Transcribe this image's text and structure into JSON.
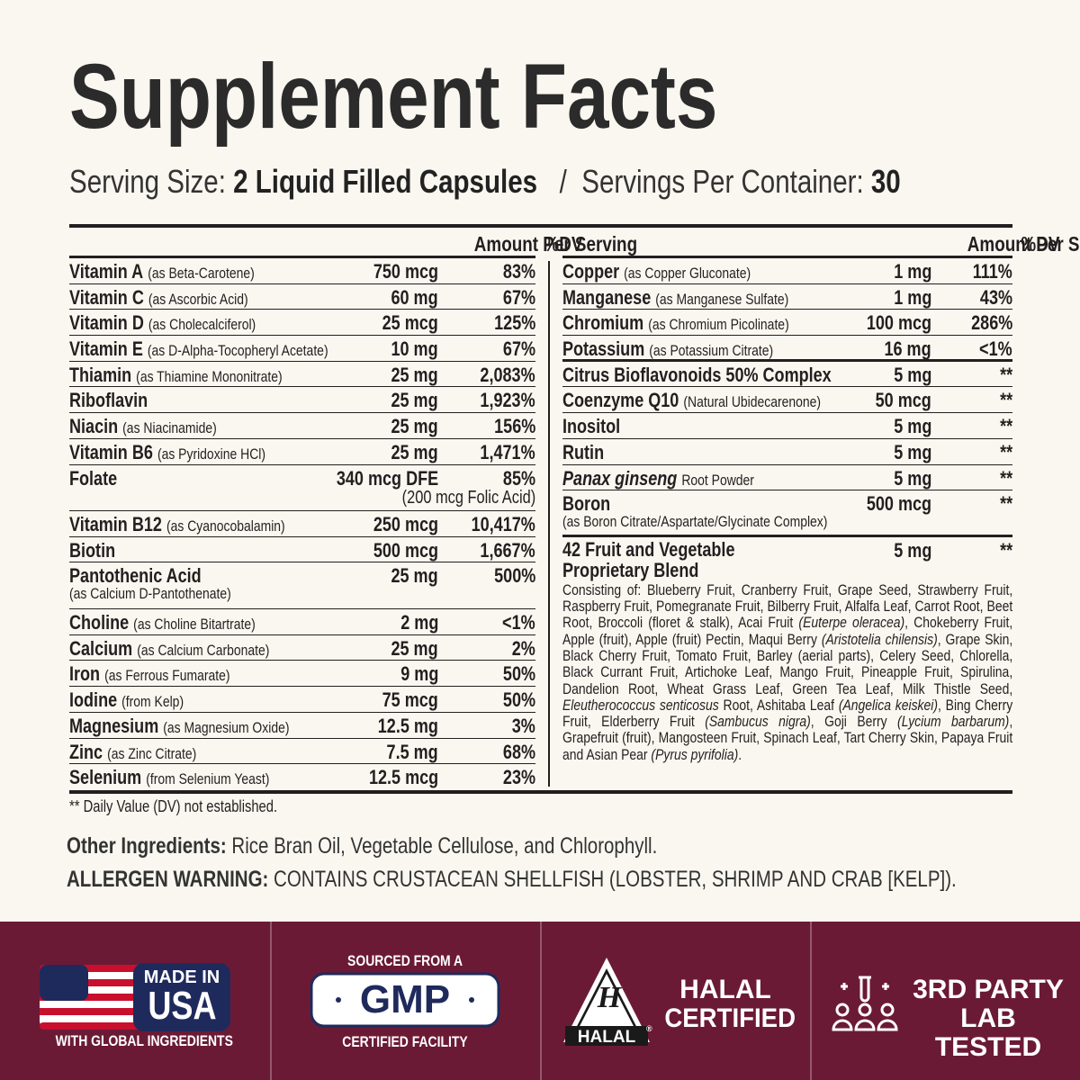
{
  "header": {
    "title": "Supplement Facts",
    "serving_size_label": "Serving Size:",
    "serving_size": "2 Liquid Filled Capsules",
    "separator": "/",
    "servings_label": "Servings Per Container:",
    "servings": "30"
  },
  "left_table": {
    "amount_header": "Amount Per Serving",
    "dv_header": "%DV",
    "groups": [
      [
        {
          "name": "Vitamin A",
          "detail": "(as Beta-Carotene)",
          "amount": "750 mcg",
          "dv": "83%"
        },
        {
          "name": "Vitamin C",
          "detail": "(as Ascorbic Acid)",
          "amount": "60 mg",
          "dv": "67%"
        },
        {
          "name": "Vitamin D",
          "detail": "(as Cholecalciferol)",
          "amount": "25 mcg",
          "dv": "125%"
        },
        {
          "name": "Vitamin E",
          "detail": "(as D-Alpha-Tocopheryl Acetate)",
          "amount": "10 mg",
          "dv": "67%"
        },
        {
          "name": "Thiamin",
          "detail": "(as Thiamine Mononitrate)",
          "amount": "25 mg",
          "dv": "2,083%"
        },
        {
          "name": "Riboflavin",
          "amount": "25 mg",
          "dv": "1,923%"
        },
        {
          "name": "Niacin",
          "detail": "(as Niacinamide)",
          "amount": "25 mg",
          "dv": "156%"
        },
        {
          "name": "Vitamin B6",
          "detail": "(as Pyridoxine HCl)",
          "amount": "25 mg",
          "dv": "1,471%"
        },
        {
          "name": "Folate",
          "amount": "340 mcg DFE",
          "dv": "85%",
          "amount_note": "(200 mcg Folic Acid)"
        },
        {
          "name": "Vitamin B12",
          "detail": "(as Cyanocobalamin)",
          "amount": "250 mcg",
          "dv": "10,417%"
        },
        {
          "name": "Biotin",
          "amount": "500 mcg",
          "dv": "1,667%"
        },
        {
          "name": "Pantothenic Acid",
          "note": "(as Calcium D-Pantothenate)",
          "amount": "25 mg",
          "dv": "500%"
        },
        {
          "name": "Choline",
          "detail": "(as Choline Bitartrate)",
          "amount": "2 mg",
          "dv": "<1%"
        },
        {
          "name": "Calcium",
          "detail": "(as Calcium Carbonate)",
          "amount": "25 mg",
          "dv": "2%"
        },
        {
          "name": "Iron",
          "detail": "(as Ferrous Fumarate)",
          "amount": "9 mg",
          "dv": "50%"
        },
        {
          "name": "Iodine",
          "detail": "(from Kelp)",
          "amount": "75 mcg",
          "dv": "50%"
        },
        {
          "name": "Magnesium",
          "detail": "(as Magnesium Oxide)",
          "amount": "12.5 mg",
          "dv": "3%"
        },
        {
          "name": "Zinc",
          "detail": "(as Zinc Citrate)",
          "amount": "7.5 mg",
          "dv": "68%"
        },
        {
          "name": "Selenium",
          "detail": "(from Selenium Yeast)",
          "amount": "12.5 mcg",
          "dv": "23%"
        }
      ]
    ]
  },
  "right_table": {
    "amount_header": "Amount Per Serving",
    "dv_header": "%DV",
    "groups": [
      [
        {
          "name": "Copper",
          "detail": "(as Copper Gluconate)",
          "amount": "1 mg",
          "dv": "111%"
        },
        {
          "name": "Manganese",
          "detail": "(as Manganese Sulfate)",
          "amount": "1 mg",
          "dv": "43%"
        },
        {
          "name": "Chromium",
          "detail": "(as Chromium Picolinate)",
          "amount": "100 mcg",
          "dv": "286%"
        },
        {
          "name": "Potassium",
          "detail": "(as Potassium Citrate)",
          "amount": "16 mg",
          "dv": "<1%"
        }
      ],
      [
        {
          "name": "Citrus Bioflavonoids 50% Complex",
          "amount": "5 mg",
          "dv": "**"
        },
        {
          "name": "Coenzyme Q10",
          "detail": "(Natural Ubidecarenone)",
          "amount": "50 mcg",
          "dv": "**"
        },
        {
          "name": "Inositol",
          "amount": "5 mg",
          "dv": "**"
        },
        {
          "name": "Rutin",
          "amount": "5 mg",
          "dv": "**"
        },
        {
          "name": "Panax ginseng",
          "italic": true,
          "detail": "Root Powder",
          "amount": "5 mg",
          "dv": "**"
        },
        {
          "name": "Boron",
          "note": "(as Boron Citrate/Aspartate/Glycinate Complex)",
          "amount": "500 mcg",
          "dv": "**"
        }
      ],
      [
        {
          "name": "42 Fruit and Vegetable Proprietary Blend",
          "amount": "5 mg",
          "dv": "**",
          "description": [
            {
              "text": "Consisting of: Blueberry Fruit, Cranberry Fruit, Grape Seed, Strawberry Fruit, Raspberry Fruit, Pomegranate Fruit, Bilberry Fruit, Alfalfa Leaf, Carrot Root, Beet Root, Broccoli (floret & stalk), Acai Fruit ",
              "italic": false
            },
            {
              "text": "(Euterpe oleracea)",
              "italic": true
            },
            {
              "text": ", Chokeberry Fruit, Apple (fruit), Apple (fruit) Pectin, Maqui Berry ",
              "italic": false
            },
            {
              "text": "(Aristotelia chilensis)",
              "italic": true
            },
            {
              "text": ", Grape Skin, Black Cherry Fruit, Tomato Fruit, Barley (aerial parts), Celery Seed, Chlorella, Black Currant Fruit, Artichoke Leaf, Mango Fruit, Pineapple Fruit, Spirulina, Dandelion Root, Wheat Grass Leaf, Green Tea Leaf, Milk Thistle Seed, ",
              "italic": false
            },
            {
              "text": "Eleutherococcus senticosus",
              "italic": true
            },
            {
              "text": " Root, Ashitaba Leaf ",
              "italic": false
            },
            {
              "text": "(Angelica keiskei)",
              "italic": true
            },
            {
              "text": ", Bing Cherry Fruit, Elderberry Fruit ",
              "italic": false
            },
            {
              "text": "(Sambucus nigra)",
              "italic": true
            },
            {
              "text": ", Goji Berry ",
              "italic": false
            },
            {
              "text": "(Lycium barbarum)",
              "italic": true
            },
            {
              "text": ", Grapefruit (fruit), Mangosteen Fruit, Spinach Leaf, Tart Cherry Skin, Papaya Fruit and Asian Pear ",
              "italic": false
            },
            {
              "text": "(Pyrus pyrifolia)",
              "italic": true
            },
            {
              "text": ".",
              "italic": false
            }
          ]
        }
      ]
    ]
  },
  "footnote": "** Daily Value (DV) not established.",
  "other_ingredients": {
    "label": "Other Ingredients:",
    "text": "Rice Bran Oil, Vegetable Cellulose, and Chlorophyll."
  },
  "allergen": {
    "label": "ALLERGEN WARNING:",
    "text": "CONTAINS CRUSTACEAN SHELLFISH (LOBSTER, SHRIMP AND CRAB [KELP])."
  },
  "badges": {
    "usa": {
      "line1": "MADE IN",
      "line2": "USA",
      "caption": "WITH GLOBAL INGREDIENTS"
    },
    "gmp": {
      "top": "SOURCED FROM A",
      "mark": "GMP",
      "caption": "CERTIFIED FACILITY"
    },
    "halal": {
      "icon_letter": "H",
      "icon_label": "HALAL",
      "registered": "®",
      "line1": "HALAL",
      "line2": "CERTIFIED"
    },
    "lab": {
      "line1": "3RD PARTY",
      "line2": "LAB TESTED"
    }
  }
}
